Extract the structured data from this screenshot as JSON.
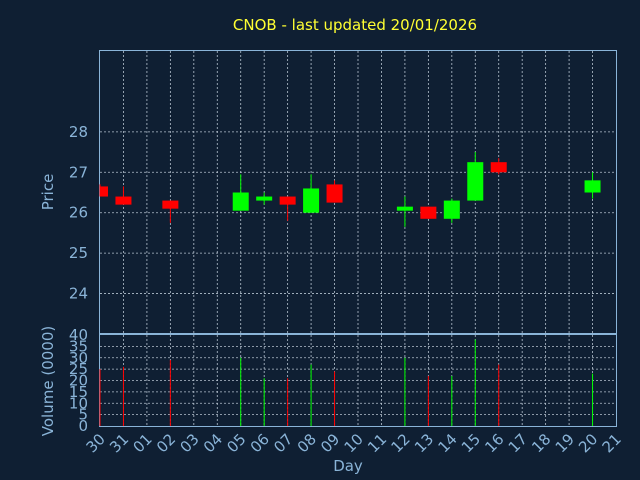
{
  "chart_data": {
    "type": "candlestick",
    "title": "CNOB - last updated 20/01/2026",
    "xlabel": "Day",
    "price": {
      "ylabel": "Price",
      "ylim": [
        23,
        30
      ],
      "yticks": [
        24,
        25,
        26,
        27,
        28
      ]
    },
    "volume": {
      "ylabel": "Volume (0000)",
      "ylim": [
        0,
        40
      ],
      "yticks": [
        0,
        5,
        10,
        15,
        20,
        25,
        30,
        35,
        40
      ]
    },
    "x_ticks": [
      "30",
      "31",
      "01",
      "02",
      "03",
      "04",
      "05",
      "06",
      "07",
      "08",
      "09",
      "10",
      "11",
      "12",
      "13",
      "14",
      "15",
      "16",
      "17",
      "18",
      "19",
      "20",
      "21"
    ],
    "grid": true,
    "up_color": "#00ff00",
    "down_color": "#ff0000",
    "candles": [
      {
        "day": "30",
        "open": 26.65,
        "close": 26.4,
        "high": 26.7,
        "low": 26.4,
        "volume": 25
      },
      {
        "day": "31",
        "open": 26.4,
        "close": 26.2,
        "high": 26.65,
        "low": 26.2,
        "volume": 26
      },
      {
        "day": "02",
        "open": 26.3,
        "close": 26.1,
        "high": 26.3,
        "low": 25.75,
        "volume": 29
      },
      {
        "day": "05",
        "open": 26.05,
        "close": 26.5,
        "high": 26.95,
        "low": 26.05,
        "volume": 30
      },
      {
        "day": "06",
        "open": 26.3,
        "close": 26.4,
        "high": 26.5,
        "low": 26.2,
        "volume": 21
      },
      {
        "day": "07",
        "open": 26.4,
        "close": 26.2,
        "high": 26.4,
        "low": 25.8,
        "volume": 21
      },
      {
        "day": "08",
        "open": 26.0,
        "close": 26.6,
        "high": 26.95,
        "low": 26.0,
        "volume": 27
      },
      {
        "day": "09",
        "open": 26.7,
        "close": 26.25,
        "high": 26.8,
        "low": 26.25,
        "volume": 24
      },
      {
        "day": "12",
        "open": 26.05,
        "close": 26.15,
        "high": 26.4,
        "low": 25.65,
        "volume": 30
      },
      {
        "day": "13",
        "open": 26.15,
        "close": 25.85,
        "high": 26.15,
        "low": 25.85,
        "volume": 22
      },
      {
        "day": "14",
        "open": 25.85,
        "close": 26.3,
        "high": 26.35,
        "low": 25.75,
        "volume": 22
      },
      {
        "day": "15",
        "open": 26.3,
        "close": 27.25,
        "high": 27.5,
        "low": 26.3,
        "volume": 38
      },
      {
        "day": "16",
        "open": 27.25,
        "close": 27.0,
        "high": 27.35,
        "low": 26.95,
        "volume": 27
      },
      {
        "day": "20",
        "open": 26.5,
        "close": 26.8,
        "high": 27.0,
        "low": 26.35,
        "volume": 23
      }
    ]
  }
}
